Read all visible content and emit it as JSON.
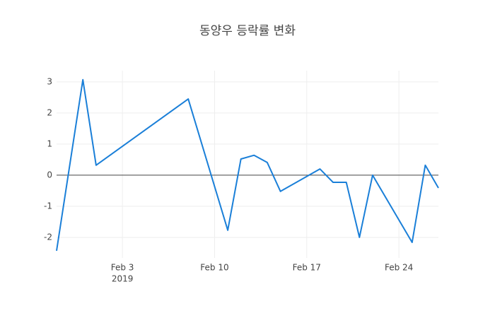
{
  "chart_data": {
    "type": "line",
    "title": "동양우 등락률 변화",
    "x": [
      "2019-01-29",
      "2019-01-31",
      "2019-02-01",
      "2019-02-08",
      "2019-02-11",
      "2019-02-12",
      "2019-02-13",
      "2019-02-14",
      "2019-02-15",
      "2019-02-18",
      "2019-02-19",
      "2019-02-20",
      "2019-02-21",
      "2019-02-22",
      "2019-02-25",
      "2019-02-26",
      "2019-02-27"
    ],
    "series": [
      {
        "color": "#1a7fd8",
        "values": [
          -2.43,
          3.07,
          0.32,
          2.45,
          -1.77,
          0.52,
          0.64,
          0.41,
          -0.52,
          0.2,
          -0.23,
          -0.23,
          -2.0,
          0,
          -2.16,
          0.32,
          -0.41
        ]
      }
    ],
    "xlim": [
      "2019-01-29",
      "2019-02-27"
    ],
    "xticks": [
      {
        "value": "2019-02-03",
        "label": "Feb 3"
      },
      {
        "value": "2019-02-10",
        "label": "Feb 10"
      },
      {
        "value": "2019-02-17",
        "label": "Feb 17"
      },
      {
        "value": "2019-02-24",
        "label": "Feb 24"
      }
    ],
    "xtick_year": "2019",
    "ylim": [
      -2.66,
      3.36
    ],
    "yticks": [
      -2,
      -1,
      0,
      1,
      2,
      3
    ],
    "grid": true,
    "zeroline": true
  }
}
